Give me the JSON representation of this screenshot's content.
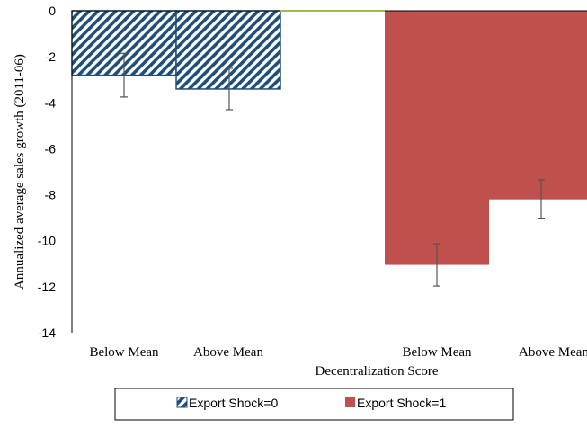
{
  "chart_data": {
    "type": "bar",
    "title": "",
    "xlabel": "Decentralization  Score",
    "ylabel": "Annualized average sales growth (2011-06)",
    "ylim": [
      -14,
      0
    ],
    "yticks": [
      0,
      -2,
      -4,
      -6,
      -8,
      -10,
      -12,
      -14
    ],
    "grid": false,
    "legend_position": "bottom",
    "categories": [
      "Below Mean",
      "Above Mean",
      "Below Mean",
      "Above Mean"
    ],
    "series": [
      {
        "name": "Export Shock=0",
        "color": "#1f4e79",
        "pattern": "diagonal-hatch",
        "values": [
          -2.8,
          -3.4,
          null,
          null
        ],
        "error": [
          0.95,
          0.9,
          null,
          null
        ]
      },
      {
        "name": "Export Shock=1",
        "color": "#c0504d",
        "pattern": "solid",
        "values": [
          null,
          null,
          -11.05,
          -8.2
        ],
        "error": [
          null,
          null,
          0.92,
          0.85
        ]
      }
    ]
  }
}
